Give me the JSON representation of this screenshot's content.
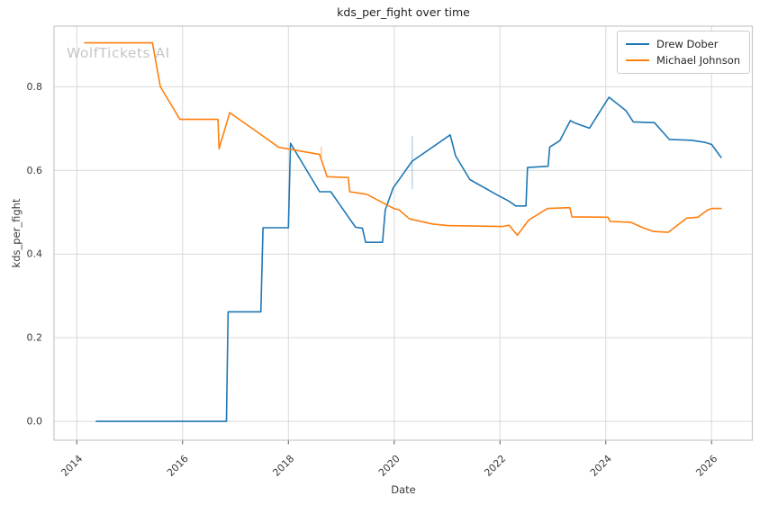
{
  "watermark": {
    "text": "WolfTickets AI",
    "color": "#c6c6c6"
  },
  "chart_data": {
    "type": "line",
    "title": "kds_per_fight over time",
    "xlabel": "Date",
    "ylabel": "kds_per_fight",
    "xlim": [
      2013.57,
      2026.77
    ],
    "ylim": [
      -0.045,
      0.945
    ],
    "x_ticks": [
      2014,
      2016,
      2018,
      2020,
      2022,
      2024,
      2026
    ],
    "y_ticks": [
      0.0,
      0.2,
      0.4,
      0.6,
      0.8
    ],
    "grid": true,
    "legend_position": "upper right",
    "grid_color": "#d9d9d9",
    "spine_color": "#c9c9c9",
    "tick_color": "#3a3a3a",
    "series": [
      {
        "name": "Drew Dober",
        "color": "#1f77b4",
        "points": [
          [
            2014.37,
            0.0
          ],
          [
            2016.83,
            0.0
          ],
          [
            2016.86,
            0.262
          ],
          [
            2017.48,
            0.262
          ],
          [
            2017.52,
            0.463
          ],
          [
            2018.0,
            0.463
          ],
          [
            2018.04,
            0.665
          ],
          [
            2018.59,
            0.549
          ],
          [
            2018.8,
            0.549
          ],
          [
            2019.27,
            0.464
          ],
          [
            2019.4,
            0.462
          ],
          [
            2019.46,
            0.428
          ],
          [
            2019.78,
            0.428
          ],
          [
            2019.83,
            0.505
          ],
          [
            2019.98,
            0.558
          ],
          [
            2020.34,
            0.622
          ],
          [
            2021.06,
            0.685
          ],
          [
            2021.16,
            0.635
          ],
          [
            2021.43,
            0.578
          ],
          [
            2021.94,
            0.542
          ],
          [
            2022.16,
            0.527
          ],
          [
            2022.3,
            0.515
          ],
          [
            2022.49,
            0.515
          ],
          [
            2022.52,
            0.607
          ],
          [
            2022.91,
            0.61
          ],
          [
            2022.94,
            0.656
          ],
          [
            2023.13,
            0.671
          ],
          [
            2023.33,
            0.719
          ],
          [
            2023.42,
            0.713
          ],
          [
            2023.69,
            0.701
          ],
          [
            2024.06,
            0.775
          ],
          [
            2024.38,
            0.743
          ],
          [
            2024.52,
            0.716
          ],
          [
            2024.92,
            0.714
          ],
          [
            2025.2,
            0.674
          ],
          [
            2025.62,
            0.672
          ],
          [
            2025.88,
            0.667
          ],
          [
            2026.0,
            0.662
          ],
          [
            2026.18,
            0.631
          ]
        ]
      },
      {
        "name": "Michael Johnson",
        "color": "#ff7f0e",
        "points": [
          [
            2014.15,
            0.905
          ],
          [
            2015.43,
            0.905
          ],
          [
            2015.58,
            0.8
          ],
          [
            2015.95,
            0.722
          ],
          [
            2016.67,
            0.722
          ],
          [
            2016.69,
            0.652
          ],
          [
            2016.89,
            0.738
          ],
          [
            2017.31,
            0.701
          ],
          [
            2017.82,
            0.655
          ],
          [
            2017.96,
            0.652
          ],
          [
            2018.59,
            0.638
          ],
          [
            2018.73,
            0.585
          ],
          [
            2019.13,
            0.583
          ],
          [
            2019.16,
            0.549
          ],
          [
            2019.48,
            0.543
          ],
          [
            2019.99,
            0.509
          ],
          [
            2020.09,
            0.506
          ],
          [
            2020.29,
            0.484
          ],
          [
            2020.72,
            0.472
          ],
          [
            2021.01,
            0.468
          ],
          [
            2022.05,
            0.466
          ],
          [
            2022.17,
            0.469
          ],
          [
            2022.33,
            0.445
          ],
          [
            2022.54,
            0.481
          ],
          [
            2022.9,
            0.509
          ],
          [
            2023.32,
            0.511
          ],
          [
            2023.36,
            0.489
          ],
          [
            2024.04,
            0.488
          ],
          [
            2024.08,
            0.478
          ],
          [
            2024.47,
            0.476
          ],
          [
            2024.7,
            0.463
          ],
          [
            2024.9,
            0.454
          ],
          [
            2025.18,
            0.452
          ],
          [
            2025.53,
            0.486
          ],
          [
            2025.74,
            0.488
          ],
          [
            2025.92,
            0.505
          ],
          [
            2026.0,
            0.509
          ],
          [
            2026.18,
            0.509
          ]
        ]
      }
    ],
    "error_bars": [
      {
        "series": "Drew Dober",
        "x": 2020.34,
        "y_low": 0.555,
        "y_high": 0.682,
        "color": "#1f77b4",
        "opacity": 0.3
      },
      {
        "series": "Michael Johnson",
        "x": 2018.62,
        "y_low": 0.629,
        "y_high": 0.657,
        "color": "#ff7f0e",
        "opacity": 0.4
      }
    ]
  }
}
